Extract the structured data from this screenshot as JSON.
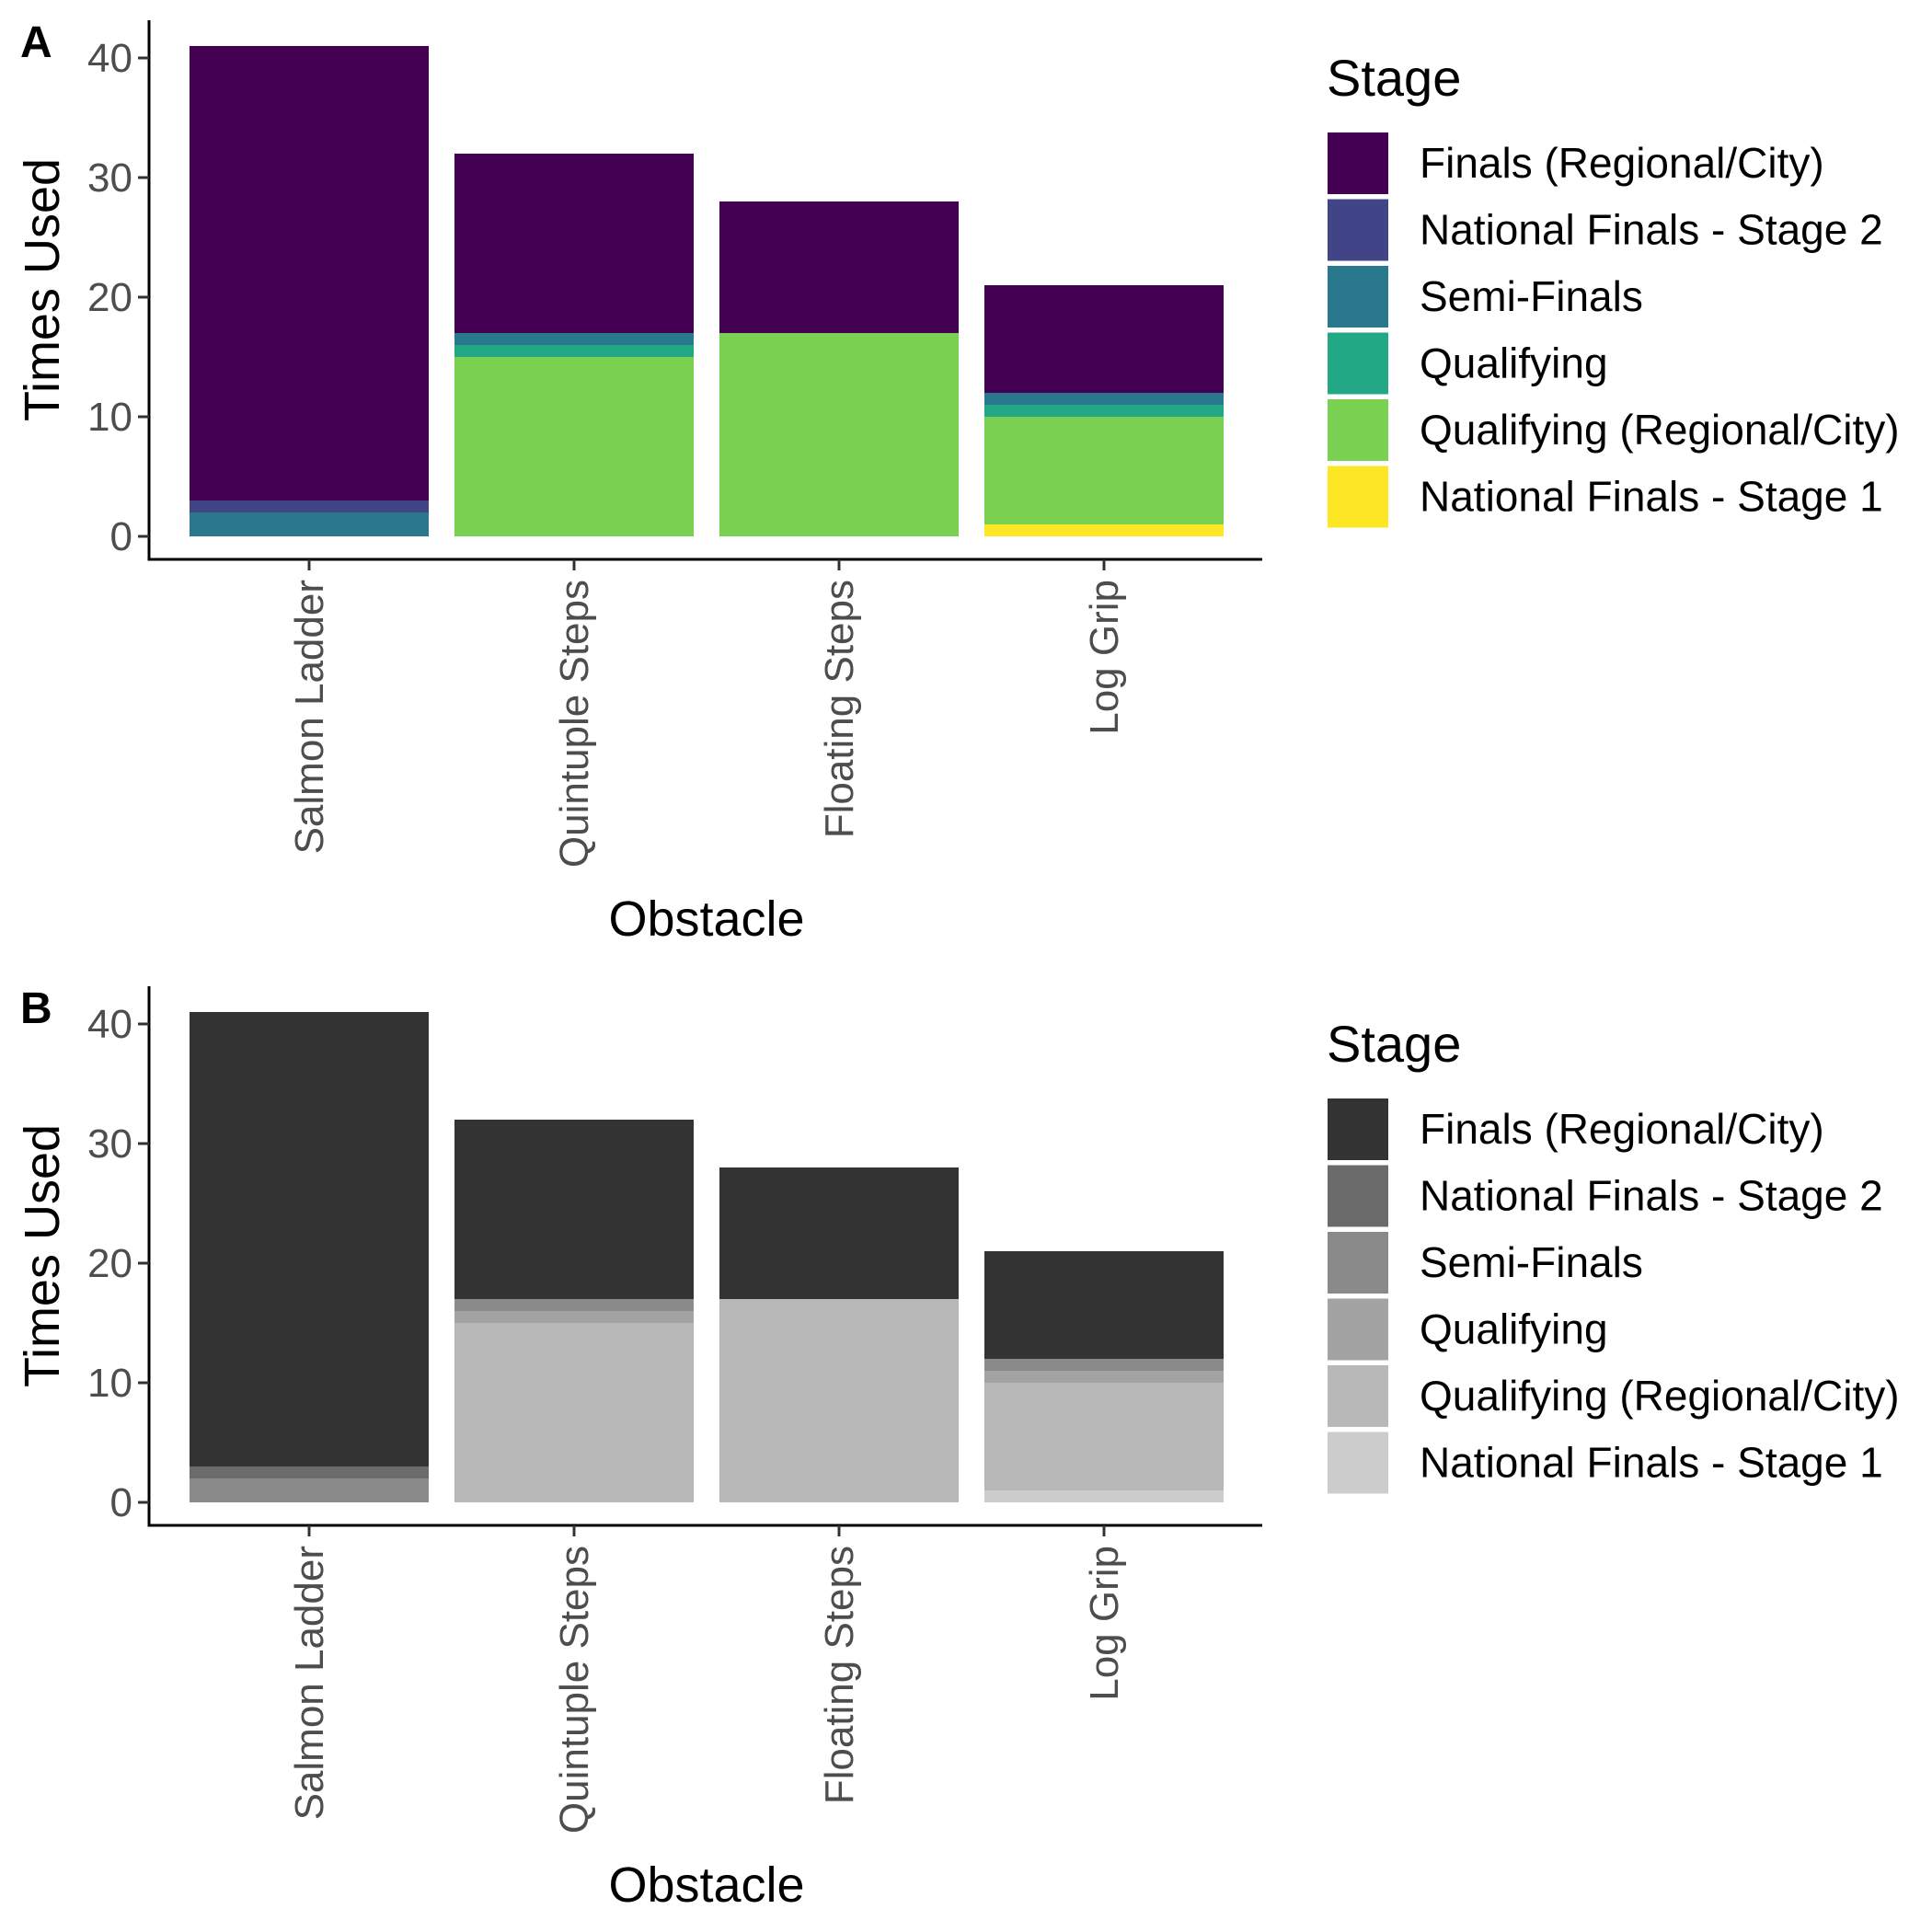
{
  "chart_data": [
    {
      "panel_label": "A",
      "type": "bar",
      "stacked": true,
      "xlabel": "Obstacle",
      "ylabel": "Times Used",
      "ylim": [
        0,
        43
      ],
      "yticks": [
        0,
        10,
        20,
        30,
        40
      ],
      "categories": [
        "Salmon Ladder",
        "Quintuple Steps",
        "Floating Steps",
        "Log Grip"
      ],
      "legend_title": "Stage",
      "legend_position": "right",
      "grid": false,
      "stack_order_bottom_to_top": [
        "National Finals - Stage 1",
        "Qualifying (Regional/City)",
        "Qualifying",
        "Semi-Finals",
        "National Finals - Stage 2",
        "Finals (Regional/City)"
      ],
      "series": [
        {
          "name": "Finals (Regional/City)",
          "color": "#440154",
          "values": [
            38,
            15,
            11,
            9
          ]
        },
        {
          "name": "National Finals - Stage 2",
          "color": "#414487",
          "values": [
            1,
            0,
            0,
            0
          ]
        },
        {
          "name": "Semi-Finals",
          "color": "#2A788E",
          "values": [
            2,
            1,
            0,
            1
          ]
        },
        {
          "name": "Qualifying",
          "color": "#22A884",
          "values": [
            0,
            1,
            0,
            1
          ]
        },
        {
          "name": "Qualifying (Regional/City)",
          "color": "#7AD151",
          "values": [
            0,
            15,
            17,
            9
          ]
        },
        {
          "name": "National Finals - Stage 1",
          "color": "#FDE725",
          "values": [
            0,
            0,
            0,
            1
          ]
        }
      ]
    },
    {
      "panel_label": "B",
      "type": "bar",
      "stacked": true,
      "xlabel": "Obstacle",
      "ylabel": "Times Used",
      "ylim": [
        0,
        43
      ],
      "yticks": [
        0,
        10,
        20,
        30,
        40
      ],
      "categories": [
        "Salmon Ladder",
        "Quintuple Steps",
        "Floating Steps",
        "Log Grip"
      ],
      "legend_title": "Stage",
      "legend_position": "right",
      "grid": false,
      "stack_order_bottom_to_top": [
        "National Finals - Stage 1",
        "Qualifying (Regional/City)",
        "Qualifying",
        "Semi-Finals",
        "National Finals - Stage 2",
        "Finals (Regional/City)"
      ],
      "series": [
        {
          "name": "Finals (Regional/City)",
          "color": "#333333",
          "values": [
            38,
            15,
            11,
            9
          ]
        },
        {
          "name": "National Finals - Stage 2",
          "color": "#6B6B6B",
          "values": [
            1,
            0,
            0,
            0
          ]
        },
        {
          "name": "Semi-Finals",
          "color": "#8A8A8A",
          "values": [
            2,
            1,
            0,
            1
          ]
        },
        {
          "name": "Qualifying",
          "color": "#A3A3A3",
          "values": [
            0,
            1,
            0,
            1
          ]
        },
        {
          "name": "Qualifying (Regional/City)",
          "color": "#B8B8B8",
          "values": [
            0,
            15,
            17,
            9
          ]
        },
        {
          "name": "National Finals - Stage 1",
          "color": "#CCCCCC",
          "values": [
            0,
            0,
            0,
            1
          ]
        }
      ]
    }
  ]
}
